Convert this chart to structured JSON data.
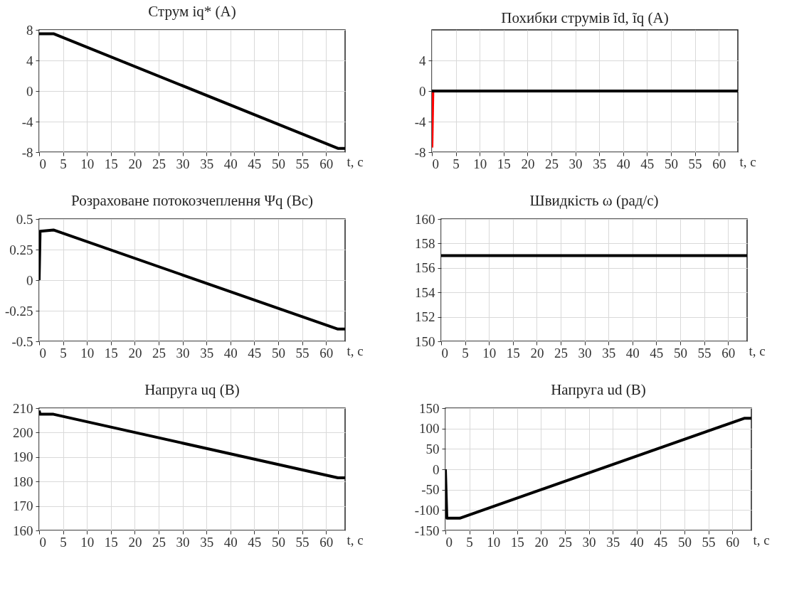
{
  "chart_data": [
    {
      "type": "line",
      "title": "Струм iq* (A)",
      "xlabel": "t, c",
      "grid": true,
      "xlim": [
        0,
        64
      ],
      "xticks": [
        0,
        5,
        10,
        15,
        20,
        25,
        30,
        35,
        40,
        45,
        50,
        55,
        60
      ],
      "ylim": [
        -8,
        8
      ],
      "yticks": [
        -8,
        -4,
        0,
        4,
        8
      ],
      "series": [
        {
          "color": "#000000",
          "x": [
            0,
            3,
            62.5,
            64
          ],
          "values": [
            7.5,
            7.5,
            -7.5,
            -7.5
          ]
        }
      ]
    },
    {
      "type": "line",
      "title": "Похибки струмів ĩd, ĩq (A)",
      "xlabel": "t, c",
      "grid": true,
      "xlim": [
        0,
        64
      ],
      "xticks": [
        0,
        5,
        10,
        15,
        20,
        25,
        30,
        35,
        40,
        45,
        50,
        55,
        60
      ],
      "ylim": [
        -8,
        8
      ],
      "yticks": [
        -8,
        -4,
        0,
        4
      ],
      "series": [
        {
          "color": "#ff0000",
          "x": [
            0,
            0.2
          ],
          "values": [
            -7.4,
            0
          ]
        },
        {
          "color": "#000000",
          "x": [
            0,
            64
          ],
          "values": [
            0,
            0
          ]
        }
      ]
    },
    {
      "type": "line",
      "title": "Розраховане потокозчеплення Ψq (Вс)",
      "xlabel": "t, c",
      "grid": true,
      "xlim": [
        0,
        64
      ],
      "xticks": [
        0,
        5,
        10,
        15,
        20,
        25,
        30,
        35,
        40,
        45,
        50,
        55,
        60
      ],
      "ylim": [
        -0.5,
        0.5
      ],
      "yticks": [
        -0.5,
        -0.25,
        0,
        0.25,
        0.5
      ],
      "series": [
        {
          "color": "#000000",
          "x": [
            0,
            0.2,
            3,
            62.5,
            64
          ],
          "values": [
            0,
            0.4,
            0.41,
            -0.4,
            -0.4
          ]
        }
      ]
    },
    {
      "type": "line",
      "title": "Швидкість ω (рад/с)",
      "xlabel": "t, c",
      "grid": true,
      "xlim": [
        0,
        64
      ],
      "xticks": [
        0,
        5,
        10,
        15,
        20,
        25,
        30,
        35,
        40,
        45,
        50,
        55,
        60
      ],
      "ylim": [
        150,
        160
      ],
      "yticks": [
        150,
        152,
        154,
        156,
        158,
        160
      ],
      "series": [
        {
          "color": "#000000",
          "x": [
            0,
            64
          ],
          "values": [
            157,
            157
          ]
        }
      ]
    },
    {
      "type": "line",
      "title": "Напруга uq (В)",
      "xlabel": "t, c",
      "grid": true,
      "xlim": [
        0,
        64
      ],
      "xticks": [
        0,
        5,
        10,
        15,
        20,
        25,
        30,
        35,
        40,
        45,
        50,
        55,
        60
      ],
      "ylim": [
        160,
        210
      ],
      "yticks": [
        160,
        170,
        180,
        190,
        200,
        210
      ],
      "series": [
        {
          "color": "#000000",
          "x": [
            0,
            0.2,
            3,
            62.5,
            64
          ],
          "values": [
            209,
            207.5,
            207.5,
            181.5,
            181.5
          ]
        }
      ]
    },
    {
      "type": "line",
      "title": "Напруга ud (В)",
      "xlabel": "t, c",
      "grid": true,
      "xlim": [
        0,
        64
      ],
      "xticks": [
        0,
        5,
        10,
        15,
        20,
        25,
        30,
        35,
        40,
        45,
        50,
        55,
        60
      ],
      "ylim": [
        -150,
        150
      ],
      "yticks": [
        -150,
        -100,
        -50,
        0,
        50,
        100,
        150
      ],
      "series": [
        {
          "color": "#000000",
          "x": [
            0,
            0.3,
            3,
            62.5,
            64
          ],
          "values": [
            0,
            -120,
            -120,
            125,
            125
          ]
        }
      ]
    }
  ]
}
